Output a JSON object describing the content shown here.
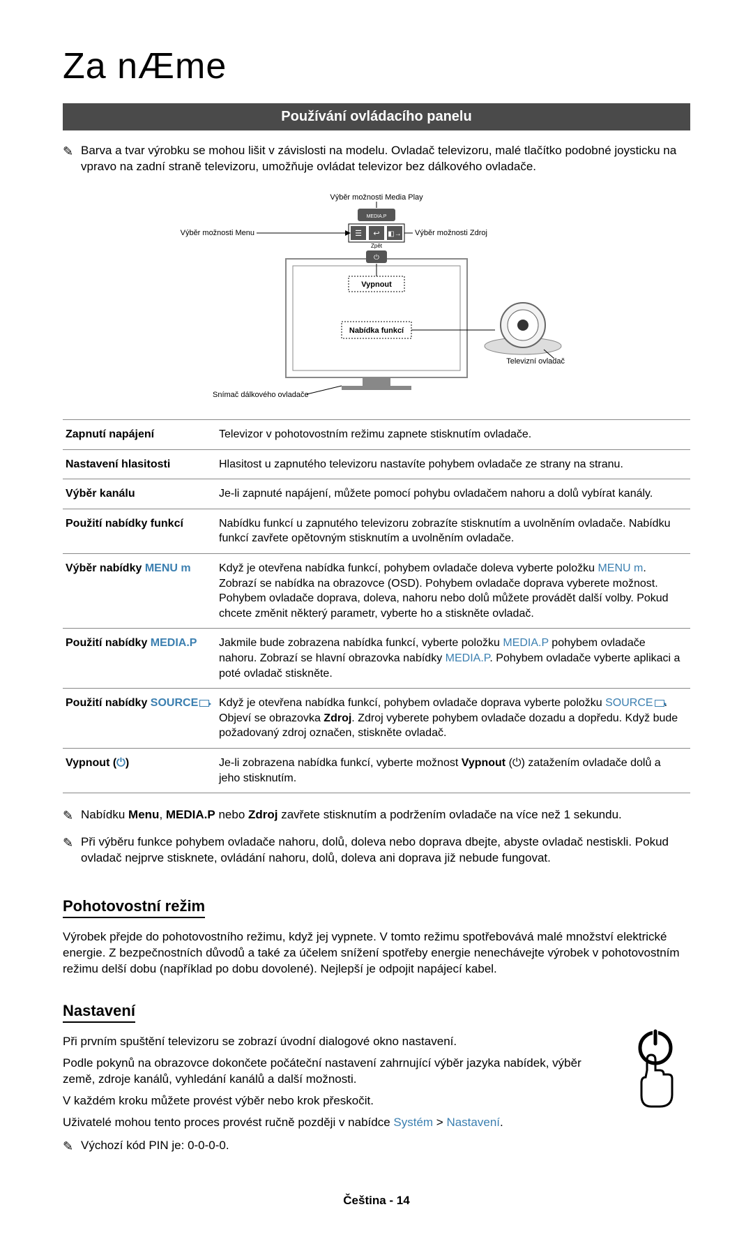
{
  "page_title": "Za nÆme",
  "banner": "Používání ovládacího panelu",
  "intro_note": "Barva a tvar výrobku se mohou lišit v závislosti na modelu. Ovladač televizoru, malé tlačítko podobné joysticku na vpravo na zadní straně televizoru, umožňuje ovládat televizor bez dálkového ovladače.",
  "diagram": {
    "label_media_play": "Výběr možnosti Media Play",
    "label_media_play_bold": "Media Play",
    "label_menu": "Výběr možnosti Menu",
    "label_menu_bold": "Menu",
    "label_source": "Výběr možnosti Zdroj",
    "label_source_bold": "Zdroj",
    "label_back": "Zpět",
    "label_off": "Vypnout",
    "label_func_menu": "Nabídka funkcí",
    "label_remote_sensor": "Snímač dálkového ovladače",
    "label_tv_controller": "Televizní ovladač",
    "btn_mediap": "MEDIA.P",
    "colors": {
      "stroke": "#000000",
      "panel_fill": "#ffffff",
      "btn_fill": "#555555",
      "btn_text": "#ffffff"
    }
  },
  "functions": [
    {
      "label_parts": [
        {
          "t": "Zapnutí napájení",
          "b": true
        }
      ],
      "desc_parts": [
        {
          "t": "Televizor v pohotovostním režimu zapnete stisknutím ovladače."
        }
      ]
    },
    {
      "label_parts": [
        {
          "t": "Nastavení hlasitosti",
          "b": true
        }
      ],
      "desc_parts": [
        {
          "t": "Hlasitost u zapnutého televizoru nastavíte pohybem ovladače ze strany na stranu."
        }
      ]
    },
    {
      "label_parts": [
        {
          "t": "Výběr kanálu",
          "b": true
        }
      ],
      "desc_parts": [
        {
          "t": "Je-li zapnuté napájení, můžete pomocí pohybu ovladačem nahoru a dolů vybírat kanály."
        }
      ]
    },
    {
      "label_parts": [
        {
          "t": "Použití nabídky funkcí",
          "b": true
        }
      ],
      "desc_parts": [
        {
          "t": "Nabídku funkcí u zapnutého televizoru zobrazíte stisknutím a uvolněním ovladače. Nabídku funkcí zavřete opětovným stisknutím a uvolněním ovladače."
        }
      ]
    },
    {
      "label_parts": [
        {
          "t": "Výběr nabídky ",
          "b": true
        },
        {
          "t": "MENU ",
          "c": "kw-blue"
        },
        {
          "t": "m",
          "c": "kw-menuicon"
        }
      ],
      "desc_parts": [
        {
          "t": "Když je otevřena nabídka funkcí, pohybem ovladače doleva vyberte položku "
        },
        {
          "t": "MENU ",
          "c": "kw-blue"
        },
        {
          "t": "m",
          "c": "kw-menuicon"
        },
        {
          "t": ". Zobrazí se nabídka na obrazovce (OSD). Pohybem ovladače doprava vyberete možnost. Pohybem ovladače doprava, doleva, nahoru nebo dolů můžete provádět další volby. Pokud chcete změnit některý parametr, vyberte ho a stiskněte ovladač."
        }
      ]
    },
    {
      "label_parts": [
        {
          "t": "Použití nabídky ",
          "b": true
        },
        {
          "t": "MEDIA.P",
          "c": "kw-blue"
        }
      ],
      "desc_parts": [
        {
          "t": "Jakmile bude zobrazena nabídka funkcí, vyberte položku "
        },
        {
          "t": "MEDIA.P",
          "c": "kw-blue"
        },
        {
          "t": " pohybem ovladače nahoru. Zobrazí se hlavní obrazovka nabídky "
        },
        {
          "t": "MEDIA.P",
          "c": "kw-blue"
        },
        {
          "t": ". Pohybem ovladače vyberte aplikaci a poté ovladač stiskněte."
        }
      ]
    },
    {
      "label_parts": [
        {
          "t": "Použití nabídky ",
          "b": true
        },
        {
          "t": "SOURCE",
          "c": "kw-blue"
        },
        {
          "t": "",
          "src": true
        }
      ],
      "desc_parts": [
        {
          "t": "Když je otevřena nabídka funkcí, pohybem ovladače doprava vyberte položku "
        },
        {
          "t": "SOURCE",
          "c": "kw-blue"
        },
        {
          "t": "",
          "src": true
        },
        {
          "t": ". Objeví se obrazovka "
        },
        {
          "t": "Zdroj",
          "b": true
        },
        {
          "t": ". Zdroj vyberete pohybem ovladače dozadu a dopředu. Když bude požadovaný zdroj označen, stiskněte ovladač."
        }
      ]
    },
    {
      "label_parts": [
        {
          "t": "Vypnout ",
          "b": true
        },
        {
          "t": "(",
          "pwr_open": true
        },
        {
          "t": ")",
          "pwr_close": true
        }
      ],
      "desc_parts": [
        {
          "t": "Je-li zobrazena nabídka funkcí, vyberte možnost "
        },
        {
          "t": "Vypnout",
          "b": true
        },
        {
          "t": " ("
        },
        {
          "t": "⏻",
          "pwr": true
        },
        {
          "t": ") zatažením ovladače dolů a jeho stisknutím."
        }
      ]
    }
  ],
  "post_notes": [
    {
      "parts": [
        {
          "t": "Nabídku "
        },
        {
          "t": "Menu",
          "b": true
        },
        {
          "t": ", "
        },
        {
          "t": "MEDIA.P",
          "b": true
        },
        {
          "t": " nebo "
        },
        {
          "t": "Zdroj",
          "b": true
        },
        {
          "t": " zavřete stisknutím a podržením ovladače na více než 1 sekundu."
        }
      ]
    },
    {
      "parts": [
        {
          "t": "Při výběru funkce pohybem ovladače nahoru, dolů, doleva nebo doprava dbejte, abyste ovladač nestiskli. Pokud ovladač nejprve stisknete, ovládání nahoru, dolů, doleva ani doprava již nebude fungovat."
        }
      ]
    }
  ],
  "standby": {
    "heading": "Pohotovostní režim",
    "body": "Výrobek přejde do pohotovostního režimu, když jej vypnete. V tomto režimu spotřebovává malé množství elektrické energie. Z bezpečnostních důvodů a také za účelem snížení spotřeby energie nenechávejte výrobek v pohotovostním režimu delší dobu (například po dobu dovolené). Nejlepší je odpojit napájecí kabel."
  },
  "settings": {
    "heading": "Nastavení",
    "p1": "Při prvním spuštění televizoru se zobrazí úvodní dialogové okno nastavení.",
    "p2": "Podle pokynů na obrazovce dokončete počáteční nastavení zahrnující výběr jazyka nabídek, výběr země, zdroje kanálů, vyhledání kanálů a další možnosti.",
    "p3": "V každém kroku můžete provést výběr nebo krok přeskočit.",
    "p4_pre": "Uživatelé mohou tento proces provést ručně později v nabídce ",
    "p4_link1": "Systém",
    "p4_sep": " > ",
    "p4_link2": "Nastavení",
    "p4_post": ".",
    "pin_note": "Výchozí kód PIN je: 0-0-0-0."
  },
  "footer": "Čeština - 14"
}
